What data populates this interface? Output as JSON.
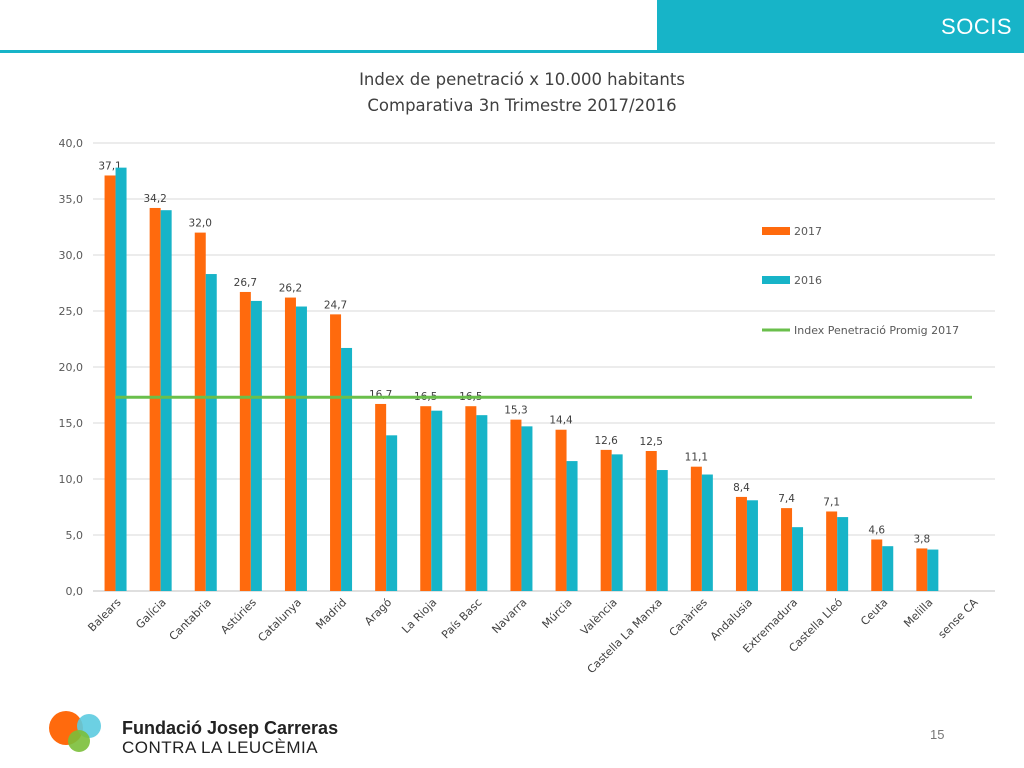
{
  "header": {
    "label": "SOCIS",
    "accent_color": "#17b4c8"
  },
  "chart_data": {
    "type": "bar",
    "title": "Index de penetració x 10.000 habitants",
    "subtitle": "Comparativa 3n Trimestre 2017/2016",
    "categories": [
      "Balears",
      "Galícia",
      "Cantabria",
      "Astúries",
      "Catalunya",
      "Madrid",
      "Aragó",
      "La Rioja",
      "País Basc",
      "Navarra",
      "Múrcia",
      "València",
      "Castella La Manxa",
      "Canàries",
      "Andalusia",
      "Extremadura",
      "Castella Lleó",
      "Ceuta",
      "Melilla",
      "sense CA"
    ],
    "series": [
      {
        "name": "2017",
        "color": "#ff6a0d",
        "values": [
          37.1,
          34.2,
          32.0,
          26.7,
          26.2,
          24.7,
          16.7,
          16.5,
          16.5,
          15.3,
          14.4,
          12.6,
          12.5,
          11.1,
          8.4,
          7.4,
          7.1,
          4.6,
          3.8,
          null
        ],
        "labels": [
          "37,1",
          "34,2",
          "32,0",
          "26,7",
          "26,2",
          "24,7",
          "16,7",
          "16,5",
          "16,5",
          "15,3",
          "14,4",
          "12,6",
          "12,5",
          "11,1",
          "8,4",
          "7,4",
          "7,1",
          "4,6",
          "3,8",
          ""
        ]
      },
      {
        "name": "2016",
        "color": "#17b4c8",
        "values": [
          37.8,
          34.0,
          28.3,
          25.9,
          25.4,
          21.7,
          13.9,
          16.1,
          15.7,
          14.7,
          11.6,
          12.2,
          10.8,
          10.4,
          8.1,
          5.7,
          6.6,
          4.0,
          3.7,
          null
        ]
      }
    ],
    "reference_line": {
      "name": "Index Penetració Promig 2017",
      "value": 17.3,
      "color": "#6abf4b"
    },
    "ylim": [
      0,
      40
    ],
    "yticks": [
      "0,0",
      "5,0",
      "10,0",
      "15,0",
      "20,0",
      "25,0",
      "30,0",
      "35,0",
      "40,0"
    ],
    "grid": true,
    "legend_position": "right"
  },
  "footer": {
    "org_line1": "Fundació Josep Carreras",
    "org_line2": "CONTRA LA LEUCÈMIA",
    "page_number": "15"
  }
}
